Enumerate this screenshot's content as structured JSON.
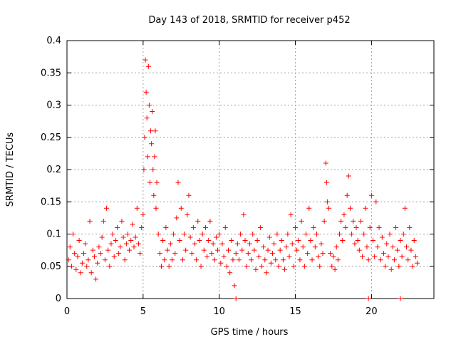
{
  "chart_data": {
    "type": "scatter",
    "title": "Day 143 of 2018, SRMTID for receiver p452",
    "xlabel": "GPS time / hours",
    "ylabel": "SRMTID / TECUs",
    "xlim": [
      0,
      24.1
    ],
    "ylim": [
      0,
      0.4
    ],
    "x_ticks": [
      0,
      5,
      10,
      15,
      20
    ],
    "y_ticks": [
      0,
      0.05,
      0.1,
      0.15,
      0.2,
      0.25,
      0.3,
      0.35,
      0.4
    ],
    "x_tick_labels": [
      "0",
      "5",
      "10",
      "15",
      "20"
    ],
    "y_tick_labels": [
      "0",
      "0.05",
      "0.1",
      "0.15",
      "0.2",
      "0.25",
      "0.3",
      "0.35",
      "0.4"
    ],
    "grid": true,
    "marker": "plus",
    "color": "#ff0000",
    "series": [
      {
        "name": "SRMTID",
        "points": [
          [
            0.1,
            0.06
          ],
          [
            0.2,
            0.08
          ],
          [
            0.3,
            0.05
          ],
          [
            0.4,
            0.1
          ],
          [
            0.5,
            0.07
          ],
          [
            0.6,
            0.045
          ],
          [
            0.7,
            0.065
          ],
          [
            0.8,
            0.09
          ],
          [
            0.9,
            0.04
          ],
          [
            1.0,
            0.055
          ],
          [
            1.1,
            0.07
          ],
          [
            1.2,
            0.085
          ],
          [
            1.3,
            0.05
          ],
          [
            1.4,
            0.06
          ],
          [
            1.5,
            0.12
          ],
          [
            1.6,
            0.04
          ],
          [
            1.7,
            0.075
          ],
          [
            1.8,
            0.065
          ],
          [
            1.9,
            0.03
          ],
          [
            2.0,
            0.055
          ],
          [
            2.1,
            0.08
          ],
          [
            2.2,
            0.07
          ],
          [
            2.3,
            0.095
          ],
          [
            2.4,
            0.12
          ],
          [
            2.5,
            0.06
          ],
          [
            2.6,
            0.14
          ],
          [
            2.7,
            0.075
          ],
          [
            2.8,
            0.05
          ],
          [
            2.9,
            0.085
          ],
          [
            3.0,
            0.1
          ],
          [
            3.1,
            0.065
          ],
          [
            3.2,
            0.09
          ],
          [
            3.3,
            0.11
          ],
          [
            3.4,
            0.07
          ],
          [
            3.5,
            0.08
          ],
          [
            3.6,
            0.12
          ],
          [
            3.7,
            0.095
          ],
          [
            3.8,
            0.06
          ],
          [
            3.9,
            0.085
          ],
          [
            4.0,
            0.1
          ],
          [
            4.1,
            0.075
          ],
          [
            4.2,
            0.09
          ],
          [
            4.3,
            0.115
          ],
          [
            4.4,
            0.08
          ],
          [
            4.5,
            0.095
          ],
          [
            4.6,
            0.14
          ],
          [
            4.7,
            0.085
          ],
          [
            4.8,
            0.07
          ],
          [
            4.9,
            0.11
          ],
          [
            5.0,
            0.13
          ],
          [
            5.05,
            0.2
          ],
          [
            5.1,
            0.25
          ],
          [
            5.15,
            0.37
          ],
          [
            5.2,
            0.32
          ],
          [
            5.25,
            0.28
          ],
          [
            5.3,
            0.22
          ],
          [
            5.35,
            0.36
          ],
          [
            5.4,
            0.3
          ],
          [
            5.45,
            0.18
          ],
          [
            5.5,
            0.26
          ],
          [
            5.55,
            0.24
          ],
          [
            5.6,
            0.29
          ],
          [
            5.65,
            0.2
          ],
          [
            5.7,
            0.16
          ],
          [
            5.75,
            0.22
          ],
          [
            5.8,
            0.26
          ],
          [
            5.85,
            0.14
          ],
          [
            5.9,
            0.18
          ],
          [
            6.0,
            0.1
          ],
          [
            6.1,
            0.07
          ],
          [
            6.2,
            0.05
          ],
          [
            6.3,
            0.09
          ],
          [
            6.4,
            0.06
          ],
          [
            6.5,
            0.11
          ],
          [
            6.6,
            0.075
          ],
          [
            6.7,
            0.05
          ],
          [
            6.8,
            0.085
          ],
          [
            6.9,
            0.06
          ],
          [
            7.0,
            0.1
          ],
          [
            7.1,
            0.07
          ],
          [
            7.2,
            0.125
          ],
          [
            7.3,
            0.18
          ],
          [
            7.4,
            0.09
          ],
          [
            7.5,
            0.14
          ],
          [
            7.6,
            0.06
          ],
          [
            7.7,
            0.1
          ],
          [
            7.8,
            0.075
          ],
          [
            7.9,
            0.13
          ],
          [
            8.0,
            0.16
          ],
          [
            8.1,
            0.095
          ],
          [
            8.2,
            0.07
          ],
          [
            8.3,
            0.11
          ],
          [
            8.4,
            0.085
          ],
          [
            8.5,
            0.06
          ],
          [
            8.6,
            0.12
          ],
          [
            8.7,
            0.09
          ],
          [
            8.8,
            0.05
          ],
          [
            8.9,
            0.1
          ],
          [
            9.0,
            0.075
          ],
          [
            9.1,
            0.11
          ],
          [
            9.2,
            0.065
          ],
          [
            9.3,
            0.09
          ],
          [
            9.4,
            0.12
          ],
          [
            9.5,
            0.07
          ],
          [
            9.6,
            0.085
          ],
          [
            9.7,
            0.06
          ],
          [
            9.8,
            0.095
          ],
          [
            9.9,
            0.075
          ],
          [
            10.0,
            0.1
          ],
          [
            10.1,
            0.055
          ],
          [
            10.2,
            0.085
          ],
          [
            10.3,
            0.065
          ],
          [
            10.4,
            0.11
          ],
          [
            10.5,
            0.05
          ],
          [
            10.6,
            0.075
          ],
          [
            10.7,
            0.04
          ],
          [
            10.8,
            0.09
          ],
          [
            10.9,
            0.06
          ],
          [
            11.0,
            0.02
          ],
          [
            11.1,
            0.07
          ],
          [
            11.2,
            0.085
          ],
          [
            11.3,
            0.06
          ],
          [
            11.4,
            0.1
          ],
          [
            11.5,
            0.075
          ],
          [
            11.6,
            0.13
          ],
          [
            11.7,
            0.09
          ],
          [
            11.8,
            0.05
          ],
          [
            11.9,
            0.07
          ],
          [
            12.0,
            0.085
          ],
          [
            12.1,
            0.06
          ],
          [
            12.2,
            0.1
          ],
          [
            12.3,
            0.075
          ],
          [
            12.4,
            0.045
          ],
          [
            12.5,
            0.09
          ],
          [
            12.6,
            0.065
          ],
          [
            12.7,
            0.11
          ],
          [
            12.8,
            0.05
          ],
          [
            12.9,
            0.08
          ],
          [
            13.0,
            0.06
          ],
          [
            13.1,
            0.04
          ],
          [
            13.2,
            0.075
          ],
          [
            13.3,
            0.095
          ],
          [
            13.4,
            0.055
          ],
          [
            13.5,
            0.07
          ],
          [
            13.6,
            0.085
          ],
          [
            13.7,
            0.06
          ],
          [
            13.8,
            0.1
          ],
          [
            13.9,
            0.05
          ],
          [
            14.0,
            0.075
          ],
          [
            14.1,
            0.09
          ],
          [
            14.2,
            0.06
          ],
          [
            14.3,
            0.045
          ],
          [
            14.4,
            0.08
          ],
          [
            14.5,
            0.1
          ],
          [
            14.6,
            0.065
          ],
          [
            14.7,
            0.13
          ],
          [
            14.8,
            0.085
          ],
          [
            14.9,
            0.05
          ],
          [
            15.0,
            0.11
          ],
          [
            15.1,
            0.075
          ],
          [
            15.2,
            0.09
          ],
          [
            15.3,
            0.06
          ],
          [
            15.4,
            0.12
          ],
          [
            15.5,
            0.08
          ],
          [
            15.6,
            0.05
          ],
          [
            15.7,
            0.1
          ],
          [
            15.8,
            0.07
          ],
          [
            15.9,
            0.14
          ],
          [
            16.0,
            0.09
          ],
          [
            16.1,
            0.06
          ],
          [
            16.2,
            0.11
          ],
          [
            16.3,
            0.08
          ],
          [
            16.4,
            0.1
          ],
          [
            16.5,
            0.065
          ],
          [
            16.6,
            0.05
          ],
          [
            16.7,
            0.085
          ],
          [
            16.8,
            0.07
          ],
          [
            16.9,
            0.12
          ],
          [
            17.0,
            0.21
          ],
          [
            17.05,
            0.18
          ],
          [
            17.1,
            0.15
          ],
          [
            17.2,
            0.14
          ],
          [
            17.3,
            0.07
          ],
          [
            17.4,
            0.05
          ],
          [
            17.5,
            0.065
          ],
          [
            17.6,
            0.045
          ],
          [
            17.7,
            0.08
          ],
          [
            17.8,
            0.06
          ],
          [
            17.9,
            0.1
          ],
          [
            18.0,
            0.12
          ],
          [
            18.1,
            0.09
          ],
          [
            18.2,
            0.13
          ],
          [
            18.3,
            0.11
          ],
          [
            18.4,
            0.16
          ],
          [
            18.5,
            0.19
          ],
          [
            18.6,
            0.14
          ],
          [
            18.7,
            0.1
          ],
          [
            18.8,
            0.12
          ],
          [
            18.9,
            0.085
          ],
          [
            19.0,
            0.11
          ],
          [
            19.1,
            0.09
          ],
          [
            19.2,
            0.075
          ],
          [
            19.3,
            0.12
          ],
          [
            19.4,
            0.065
          ],
          [
            19.5,
            0.1
          ],
          [
            19.6,
            0.14
          ],
          [
            19.7,
            0.08
          ],
          [
            19.8,
            0.06
          ],
          [
            19.9,
            0.11
          ],
          [
            20.0,
            0.16
          ],
          [
            20.1,
            0.09
          ],
          [
            20.2,
            0.065
          ],
          [
            20.3,
            0.15
          ],
          [
            20.4,
            0.08
          ],
          [
            20.5,
            0.11
          ],
          [
            20.6,
            0.06
          ],
          [
            20.7,
            0.095
          ],
          [
            20.8,
            0.07
          ],
          [
            20.9,
            0.05
          ],
          [
            21.0,
            0.085
          ],
          [
            21.1,
            0.065
          ],
          [
            21.2,
            0.1
          ],
          [
            21.3,
            0.045
          ],
          [
            21.4,
            0.08
          ],
          [
            21.5,
            0.06
          ],
          [
            21.6,
            0.11
          ],
          [
            21.7,
            0.075
          ],
          [
            21.8,
            0.05
          ],
          [
            21.9,
            0.09
          ],
          [
            22.0,
            0.065
          ],
          [
            22.1,
            0.1
          ],
          [
            22.2,
            0.14
          ],
          [
            22.3,
            0.08
          ],
          [
            22.4,
            0.06
          ],
          [
            22.5,
            0.11
          ],
          [
            22.6,
            0.075
          ],
          [
            22.7,
            0.05
          ],
          [
            22.8,
            0.09
          ],
          [
            22.9,
            0.065
          ],
          [
            23.0,
            0.055
          ],
          [
            11.1,
            0.0
          ],
          [
            19.8,
            0.0
          ],
          [
            21.9,
            0.0
          ]
        ]
      }
    ]
  }
}
